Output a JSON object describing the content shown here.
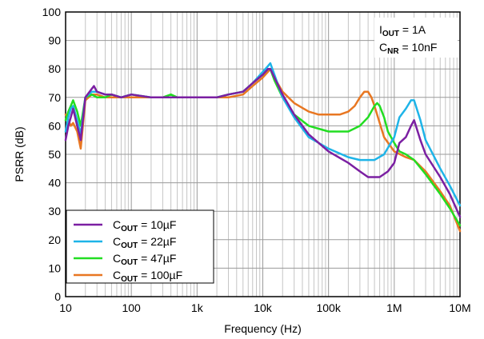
{
  "chart_data": {
    "type": "line",
    "xlabel": "Frequency (Hz)",
    "ylabel": "PSRR (dB)",
    "xscale": "log",
    "xlim": [
      10,
      10000000
    ],
    "ylim": [
      0,
      100
    ],
    "x_ticks": [
      10,
      100,
      1000,
      10000,
      100000,
      1000000,
      10000000
    ],
    "x_tick_labels": [
      "10",
      "100",
      "1k",
      "10k",
      "100k",
      "1M",
      "10M"
    ],
    "y_ticks": [
      0,
      10,
      20,
      30,
      40,
      50,
      60,
      70,
      80,
      90,
      100
    ],
    "y_tick_labels": [
      "0",
      "10",
      "20",
      "30",
      "40",
      "50",
      "60",
      "70",
      "80",
      "90",
      "100"
    ],
    "grid": true,
    "legend_position": "bottom-left",
    "annotation": {
      "line1": {
        "main": "I",
        "sub": "OUT",
        "rest": " = 1A"
      },
      "line2": {
        "main": "C",
        "sub": "NR",
        "rest": " = 10nF"
      }
    },
    "series": [
      {
        "name": {
          "main": "C",
          "sub": "OUT",
          "rest": " = 10µF"
        },
        "color": "#7b1fa2",
        "x": [
          10,
          11,
          12,
          13,
          15,
          17,
          20,
          25,
          27,
          30,
          40,
          50,
          70,
          100,
          200,
          300,
          500,
          1000,
          2000,
          3000,
          5000,
          7000,
          10000,
          12000,
          13000,
          15000,
          20000,
          30000,
          50000,
          100000,
          200000,
          300000,
          400000,
          600000,
          800000,
          1000000,
          1200000,
          1500000,
          1800000,
          2000000,
          2500000,
          3000000,
          5000000,
          7000000,
          10000000
        ],
        "y": [
          55,
          60,
          63,
          66,
          60,
          55,
          70,
          73,
          74,
          72,
          71,
          71,
          70,
          71,
          70,
          70,
          70,
          70,
          70,
          71,
          72,
          75,
          78,
          80,
          80,
          77,
          71,
          64,
          57,
          51,
          47,
          44,
          42,
          42,
          44,
          47,
          54,
          56,
          60,
          62,
          55,
          50,
          42,
          36,
          28
        ]
      },
      {
        "name": {
          "main": "C",
          "sub": "OUT",
          "rest": " = 22µF"
        },
        "color": "#1eb4e8",
        "x": [
          10,
          11,
          12,
          13,
          15,
          17,
          20,
          25,
          30,
          40,
          50,
          70,
          100,
          200,
          300,
          500,
          1000,
          2000,
          3000,
          5000,
          7000,
          10000,
          12000,
          13000,
          15000,
          20000,
          30000,
          50000,
          100000,
          200000,
          300000,
          500000,
          700000,
          1000000,
          1200000,
          1500000,
          1800000,
          2000000,
          2500000,
          3000000,
          5000000,
          7000000,
          10000000
        ],
        "y": [
          58,
          63,
          66,
          67,
          62,
          57,
          70,
          72,
          72,
          71,
          71,
          70,
          71,
          70,
          70,
          70,
          70,
          70,
          71,
          72,
          75,
          79,
          81,
          82,
          78,
          70,
          63,
          56,
          52,
          49,
          48,
          48,
          50,
          56,
          63,
          66,
          69,
          69,
          62,
          55,
          45,
          39,
          32
        ]
      },
      {
        "name": {
          "main": "C",
          "sub": "OUT",
          "rest": " = 47µF"
        },
        "color": "#22dd22",
        "x": [
          10,
          11,
          12,
          13,
          15,
          17,
          20,
          25,
          30,
          40,
          50,
          70,
          100,
          200,
          300,
          400,
          500,
          1000,
          2000,
          3000,
          5000,
          7000,
          10000,
          12000,
          13000,
          15000,
          20000,
          30000,
          50000,
          100000,
          200000,
          300000,
          400000,
          500000,
          550000,
          600000,
          700000,
          800000,
          1000000,
          1200000,
          1500000,
          2000000,
          3000000,
          5000000,
          7000000,
          10000000
        ],
        "y": [
          62,
          65,
          67,
          69,
          65,
          60,
          70,
          71,
          70,
          70,
          71,
          70,
          71,
          70,
          70,
          71,
          70,
          70,
          70,
          71,
          72,
          75,
          78,
          80,
          80,
          76,
          70,
          64,
          60,
          58,
          58,
          60,
          63,
          67,
          68,
          67,
          63,
          58,
          54,
          51,
          50,
          48,
          43,
          36,
          31,
          25
        ]
      },
      {
        "name": {
          "main": "C",
          "sub": "OUT",
          "rest": " = 100µF"
        },
        "color": "#e87722",
        "x": [
          10,
          11,
          12,
          13,
          15,
          17,
          20,
          25,
          30,
          40,
          50,
          70,
          100,
          200,
          300,
          500,
          1000,
          2000,
          3000,
          5000,
          7000,
          10000,
          12000,
          13000,
          15000,
          20000,
          30000,
          50000,
          70000,
          100000,
          150000,
          200000,
          250000,
          300000,
          350000,
          400000,
          450000,
          500000,
          600000,
          700000,
          1000000,
          1500000,
          2000000,
          3000000,
          5000000,
          7000000,
          10000000
        ],
        "y": [
          64,
          62,
          60,
          61,
          58,
          52,
          69,
          71,
          71,
          70,
          70,
          70,
          70,
          70,
          70,
          70,
          70,
          70,
          70,
          71,
          74,
          77,
          79,
          80,
          77,
          72,
          68,
          65,
          64,
          64,
          64,
          65,
          67,
          70,
          72,
          72,
          70,
          67,
          61,
          56,
          51,
          49,
          48,
          44,
          37,
          32,
          23
        ]
      }
    ]
  }
}
